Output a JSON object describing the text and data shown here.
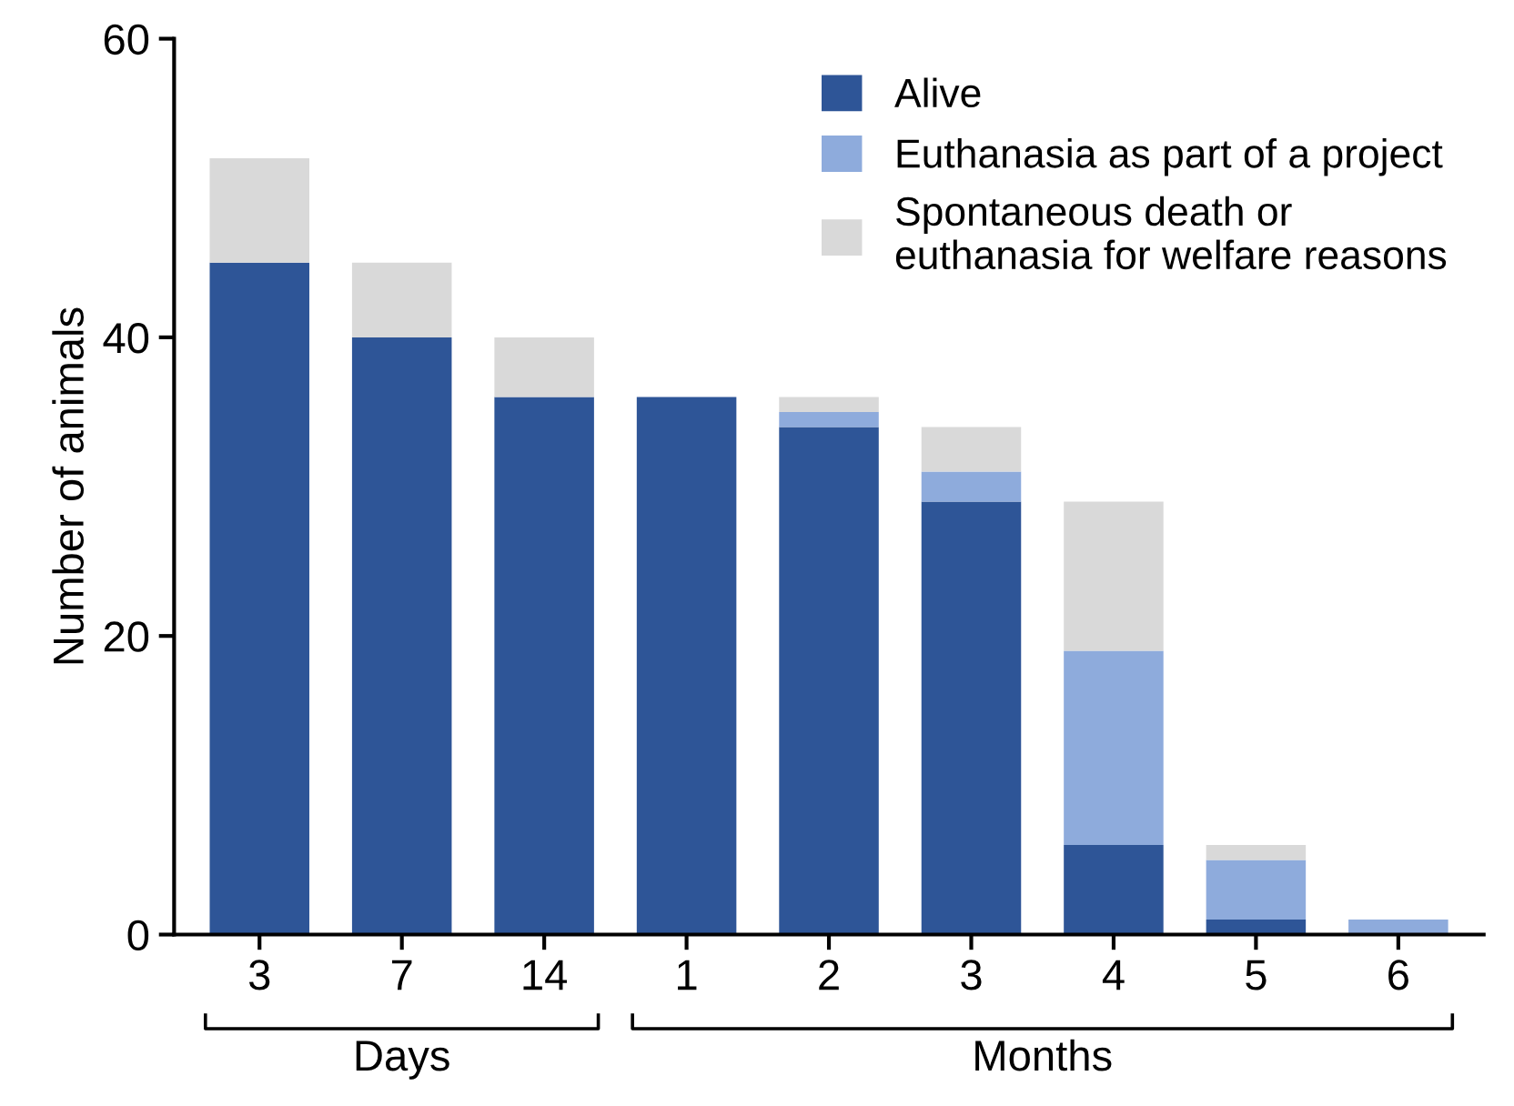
{
  "chart_data": {
    "type": "bar",
    "stacked": true,
    "ylabel": "Number of animals",
    "categories": [
      "3",
      "7",
      "14",
      "1",
      "2",
      "3",
      "4",
      "5",
      "6"
    ],
    "series": [
      {
        "name": "Alive",
        "color": "#2e5597",
        "values": [
          45,
          40,
          36,
          36,
          34,
          29,
          6,
          1,
          0
        ]
      },
      {
        "name": "Euthanasia as part of a project",
        "color": "#8eabdc",
        "values": [
          0,
          0,
          0,
          0,
          1,
          2,
          13,
          4,
          1
        ]
      },
      {
        "name": "Spontaneous death or\neuthanasia for welfare reasons",
        "color": "#d9d9d9",
        "values": [
          7,
          5,
          4,
          0,
          1,
          3,
          10,
          1,
          0
        ]
      }
    ],
    "ylim": [
      0,
      60
    ],
    "yticks": [
      0,
      20,
      40,
      60
    ],
    "grid": false,
    "legend": "top right",
    "annotations": [
      "Days",
      "Months"
    ]
  }
}
